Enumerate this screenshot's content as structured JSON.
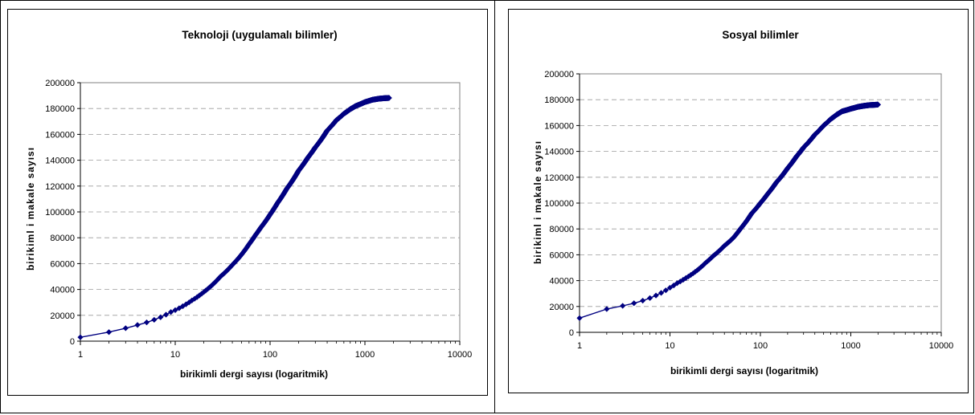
{
  "chart_data": [
    {
      "type": "line",
      "title": "Teknoloji (uygulamalı bilimler)",
      "xlabel": "birikimli dergi sayısı (logaritmik)",
      "ylabel": "birikiml i makale sayısı",
      "x_scale": "log",
      "xlim": [
        1,
        10000
      ],
      "ylim": [
        0,
        200000
      ],
      "x_ticks": [
        "1",
        "10",
        "100",
        "1000",
        "10000"
      ],
      "y_ticks": [
        "0",
        "20000",
        "40000",
        "60000",
        "80000",
        "100000",
        "120000",
        "140000",
        "160000",
        "180000",
        "200000"
      ],
      "grid": "horizontal dashed",
      "series": [
        {
          "marker": "diamond",
          "color": "#000080",
          "x": [
            1,
            2,
            3,
            4,
            5,
            6,
            7,
            8,
            9,
            10,
            12,
            15,
            20,
            25,
            30,
            40,
            50,
            60,
            70,
            80,
            100,
            120,
            150,
            200,
            250,
            300,
            400,
            500,
            600,
            700,
            800,
            1000,
            1200,
            1400,
            1600,
            1800
          ],
          "y": [
            3000,
            7000,
            10000,
            12500,
            14500,
            16500,
            18500,
            20500,
            22500,
            24000,
            27000,
            31500,
            38000,
            44000,
            50000,
            59000,
            67000,
            75000,
            82000,
            88000,
            98000,
            107000,
            118000,
            132000,
            142000,
            150000,
            163000,
            171000,
            176000,
            179500,
            182000,
            185000,
            186800,
            187600,
            188000,
            188200
          ]
        }
      ]
    },
    {
      "type": "line",
      "title": "Sosyal bilimler",
      "xlabel": "birikimli dergi sayısı (logaritmik)",
      "ylabel": "birikiml i makale sayısı",
      "x_scale": "log",
      "xlim": [
        1,
        10000
      ],
      "ylim": [
        0,
        200000
      ],
      "x_ticks": [
        "1",
        "10",
        "100",
        "1000",
        "10000"
      ],
      "y_ticks": [
        "0",
        "20000",
        "40000",
        "60000",
        "80000",
        "100000",
        "120000",
        "140000",
        "160000",
        "180000",
        "200000"
      ],
      "grid": "horizontal dashed",
      "series": [
        {
          "marker": "diamond",
          "color": "#000080",
          "x": [
            1,
            2,
            3,
            4,
            5,
            6,
            7,
            8,
            9,
            10,
            12,
            15,
            20,
            25,
            30,
            40,
            50,
            60,
            70,
            80,
            100,
            120,
            150,
            200,
            250,
            300,
            400,
            500,
            600,
            700,
            800,
            1000,
            1200,
            1400,
            1600,
            1800,
            2000
          ],
          "y": [
            11000,
            18000,
            20500,
            22500,
            24500,
            26500,
            28500,
            30500,
            32500,
            34500,
            38000,
            42000,
            48000,
            54000,
            59000,
            67000,
            73000,
            80000,
            86000,
            92000,
            100000,
            107000,
            116000,
            127000,
            136000,
            143000,
            153000,
            160000,
            165000,
            168500,
            171000,
            173000,
            174500,
            175300,
            175800,
            176000,
            176200
          ]
        }
      ]
    }
  ]
}
